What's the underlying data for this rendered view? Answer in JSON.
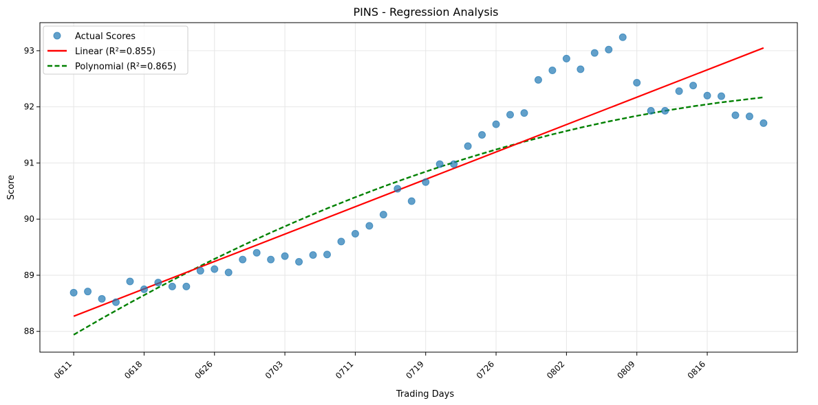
{
  "chart_data": {
    "type": "scatter",
    "title": "PINS - Regression Analysis",
    "xlabel": "Trading Days",
    "ylabel": "Score",
    "x_tick_labels": [
      "0611",
      "0618",
      "0626",
      "0703",
      "0711",
      "0719",
      "0726",
      "0802",
      "0809",
      "0816"
    ],
    "x_tick_index": [
      0,
      5,
      10,
      15,
      20,
      25,
      30,
      35,
      40,
      45
    ],
    "xlim": [
      -2.4,
      51.4
    ],
    "ylim": [
      87.63,
      93.5
    ],
    "y_ticks": [
      88,
      89,
      90,
      91,
      92,
      93
    ],
    "grid": true,
    "legend_position": "top-left",
    "series": [
      {
        "name": "Actual Scores",
        "kind": "scatter",
        "color": "#1f77b4",
        "x": [
          0,
          1,
          2,
          3,
          4,
          5,
          6,
          7,
          8,
          9,
          10,
          11,
          12,
          13,
          14,
          15,
          16,
          17,
          18,
          19,
          20,
          21,
          22,
          23,
          24,
          25,
          26,
          27,
          28,
          29,
          30,
          31,
          32,
          33,
          34,
          35,
          36,
          37,
          38,
          39,
          40,
          41,
          42,
          43,
          44,
          45,
          46,
          47,
          48,
          49
        ],
        "values": [
          88.69,
          88.71,
          88.58,
          88.52,
          88.89,
          88.75,
          88.87,
          88.8,
          88.8,
          89.08,
          89.11,
          89.05,
          89.28,
          89.4,
          89.28,
          89.34,
          89.24,
          89.36,
          89.37,
          89.6,
          89.74,
          89.88,
          90.08,
          90.54,
          90.32,
          90.66,
          90.98,
          90.98,
          91.3,
          91.5,
          91.69,
          91.86,
          91.89,
          92.48,
          92.65,
          92.86,
          92.67,
          92.96,
          93.02,
          93.24,
          92.43,
          91.93,
          91.93,
          92.28,
          92.38,
          92.2,
          92.19,
          91.85,
          91.83,
          91.71
        ]
      },
      {
        "name": "Linear (R²=0.855)",
        "kind": "line",
        "style": "solid",
        "color": "#ff0000",
        "x": [
          0,
          49
        ],
        "values": [
          88.27,
          93.05
        ]
      },
      {
        "name": "Polynomial (R²=0.865)",
        "kind": "line",
        "style": "dashed",
        "color": "#008000",
        "x": [
          0,
          2,
          4,
          6,
          8,
          10,
          12,
          14,
          16,
          18,
          20,
          22,
          24,
          26,
          28,
          30,
          32,
          34,
          36,
          38,
          40,
          42,
          44,
          46,
          48,
          49
        ],
        "values": [
          87.94,
          88.23,
          88.51,
          88.78,
          89.04,
          89.29,
          89.53,
          89.76,
          89.98,
          90.19,
          90.39,
          90.58,
          90.76,
          90.93,
          91.09,
          91.24,
          91.38,
          91.51,
          91.63,
          91.74,
          91.84,
          91.93,
          92.01,
          92.08,
          92.14,
          92.17
        ]
      }
    ]
  }
}
